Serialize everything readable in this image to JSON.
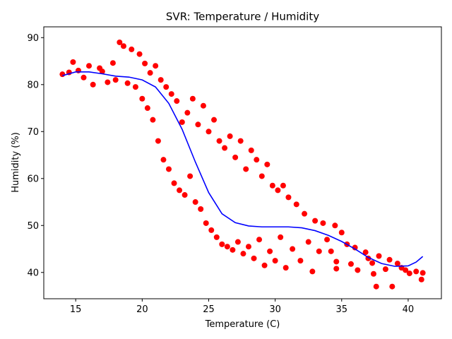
{
  "chart_data": {
    "type": "scatter",
    "title": "SVR: Temperature / Humidity",
    "xlabel": "Temperature (C)",
    "ylabel": "Humidity (%)",
    "xlim": [
      12.6,
      42.5
    ],
    "ylim": [
      34.4,
      92.3
    ],
    "xticks": [
      15,
      20,
      25,
      30,
      35,
      40
    ],
    "yticks": [
      40,
      50,
      60,
      70,
      80,
      90
    ],
    "grid": false,
    "colors": {
      "points": "#ff0000",
      "curve": "#0000ff"
    },
    "series": [
      {
        "type": "scatter",
        "points": [
          [
            14.0,
            82.2
          ],
          [
            14.5,
            82.6
          ],
          [
            14.8,
            84.8
          ],
          [
            15.2,
            83.0
          ],
          [
            15.6,
            81.5
          ],
          [
            16.0,
            84.0
          ],
          [
            16.3,
            80.0
          ],
          [
            16.8,
            83.5
          ],
          [
            17.0,
            82.8
          ],
          [
            17.4,
            80.5
          ],
          [
            17.8,
            84.6
          ],
          [
            18.0,
            81.0
          ],
          [
            18.3,
            89.0
          ],
          [
            18.6,
            88.2
          ],
          [
            18.9,
            80.3
          ],
          [
            19.2,
            87.5
          ],
          [
            19.5,
            79.5
          ],
          [
            19.8,
            86.5
          ],
          [
            20.0,
            77.0
          ],
          [
            20.2,
            84.5
          ],
          [
            20.4,
            75.0
          ],
          [
            20.6,
            82.5
          ],
          [
            20.8,
            72.5
          ],
          [
            21.0,
            84.0
          ],
          [
            21.2,
            68.0
          ],
          [
            21.4,
            81.0
          ],
          [
            21.6,
            64.0
          ],
          [
            21.8,
            79.5
          ],
          [
            22.0,
            62.0
          ],
          [
            22.2,
            78.0
          ],
          [
            22.4,
            59.0
          ],
          [
            22.6,
            76.5
          ],
          [
            22.8,
            57.5
          ],
          [
            23.0,
            72.0
          ],
          [
            23.2,
            56.5
          ],
          [
            23.4,
            74.0
          ],
          [
            23.6,
            60.5
          ],
          [
            23.8,
            77.0
          ],
          [
            24.0,
            55.0
          ],
          [
            24.2,
            71.5
          ],
          [
            24.4,
            53.5
          ],
          [
            24.6,
            75.5
          ],
          [
            24.8,
            50.5
          ],
          [
            25.0,
            70.0
          ],
          [
            25.2,
            49.0
          ],
          [
            25.4,
            72.5
          ],
          [
            25.6,
            47.5
          ],
          [
            25.8,
            68.0
          ],
          [
            26.0,
            46.0
          ],
          [
            26.2,
            66.5
          ],
          [
            26.4,
            45.5
          ],
          [
            26.6,
            69.0
          ],
          [
            26.8,
            44.8
          ],
          [
            27.0,
            64.5
          ],
          [
            27.2,
            46.5
          ],
          [
            27.4,
            68.0
          ],
          [
            27.6,
            44.0
          ],
          [
            27.8,
            62.0
          ],
          [
            28.0,
            45.5
          ],
          [
            28.2,
            66.0
          ],
          [
            28.4,
            43.0
          ],
          [
            28.6,
            64.0
          ],
          [
            28.8,
            47.0
          ],
          [
            29.0,
            60.5
          ],
          [
            29.2,
            41.5
          ],
          [
            29.4,
            63.0
          ],
          [
            29.6,
            44.5
          ],
          [
            29.8,
            58.5
          ],
          [
            30.0,
            42.5
          ],
          [
            30.2,
            57.5
          ],
          [
            30.4,
            47.5
          ],
          [
            30.6,
            58.5
          ],
          [
            30.8,
            41.0
          ],
          [
            31.0,
            56.0
          ],
          [
            31.3,
            45.0
          ],
          [
            31.6,
            54.5
          ],
          [
            31.9,
            42.5
          ],
          [
            32.2,
            52.5
          ],
          [
            32.5,
            46.5
          ],
          [
            32.8,
            40.2
          ],
          [
            33.0,
            51.0
          ],
          [
            33.3,
            44.5
          ],
          [
            33.6,
            50.5
          ],
          [
            33.9,
            47.0
          ],
          [
            34.2,
            44.5
          ],
          [
            34.5,
            50.0
          ],
          [
            34.6,
            42.3
          ],
          [
            34.6,
            40.8
          ],
          [
            35.0,
            48.5
          ],
          [
            35.4,
            46.0
          ],
          [
            35.7,
            41.8
          ],
          [
            36.0,
            45.3
          ],
          [
            36.2,
            40.5
          ],
          [
            36.8,
            44.3
          ],
          [
            37.0,
            43.0
          ],
          [
            37.3,
            42.0
          ],
          [
            37.4,
            39.7
          ],
          [
            37.6,
            37.0
          ],
          [
            37.8,
            43.5
          ],
          [
            38.3,
            40.7
          ],
          [
            38.6,
            42.7
          ],
          [
            38.8,
            37.0
          ],
          [
            39.2,
            41.9
          ],
          [
            39.5,
            41.0
          ],
          [
            39.8,
            40.5
          ],
          [
            40.1,
            39.8
          ],
          [
            40.6,
            40.2
          ],
          [
            41.0,
            38.5
          ],
          [
            41.1,
            39.9
          ]
        ]
      },
      {
        "type": "line",
        "points": [
          [
            14.0,
            81.9
          ],
          [
            15.0,
            82.7
          ],
          [
            16.0,
            82.7
          ],
          [
            17.0,
            82.3
          ],
          [
            18.0,
            81.8
          ],
          [
            19.0,
            81.6
          ],
          [
            20.0,
            81.0
          ],
          [
            21.0,
            79.5
          ],
          [
            22.0,
            76.0
          ],
          [
            23.0,
            70.5
          ],
          [
            24.0,
            63.5
          ],
          [
            25.0,
            57.0
          ],
          [
            26.0,
            52.5
          ],
          [
            27.0,
            50.6
          ],
          [
            28.0,
            49.9
          ],
          [
            29.0,
            49.7
          ],
          [
            30.0,
            49.7
          ],
          [
            31.0,
            49.7
          ],
          [
            32.0,
            49.5
          ],
          [
            33.0,
            48.9
          ],
          [
            34.0,
            47.9
          ],
          [
            35.0,
            46.6
          ],
          [
            36.0,
            45.0
          ],
          [
            37.0,
            43.2
          ],
          [
            38.0,
            41.9
          ],
          [
            39.0,
            41.3
          ],
          [
            40.0,
            41.4
          ],
          [
            40.6,
            42.2
          ],
          [
            41.1,
            43.4
          ]
        ]
      }
    ]
  }
}
